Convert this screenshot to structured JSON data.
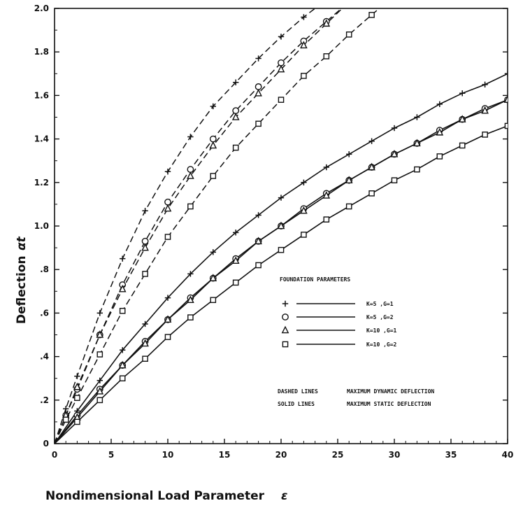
{
  "chart_data": {
    "type": "line",
    "xlabel": "Nondimensional Load Parameter",
    "xlabel_symbol": "ε",
    "ylabel": "Deflection",
    "ylabel_symbol": "αt",
    "xlim": [
      0,
      40
    ],
    "ylim": [
      0,
      2.0
    ],
    "x_ticks": [
      0,
      5,
      10,
      15,
      20,
      25,
      30,
      35,
      40
    ],
    "x_tick_labels": [
      "0",
      "5",
      "10",
      "15",
      "20",
      "25",
      "30",
      "35",
      "40"
    ],
    "y_ticks": [
      0,
      0.2,
      0.4,
      0.6,
      0.8,
      1.0,
      1.2,
      1.4,
      1.6,
      1.8,
      2.0
    ],
    "y_tick_labels": [
      "0",
      ".2",
      ".4",
      ".6",
      ".8",
      "1.0",
      "1.2",
      "1.4",
      "1.6",
      "1.8",
      "2.0"
    ],
    "grid": false,
    "legend_title": "FOUNDATION PARAMETERS",
    "legend_entries": [
      {
        "marker": "plus",
        "label": "K=5   ,G=1"
      },
      {
        "marker": "circle",
        "label": "K=5   ,G=2"
      },
      {
        "marker": "triangle",
        "label": "K=10  ,G=1"
      },
      {
        "marker": "square",
        "label": "K=10  ,G=2"
      }
    ],
    "notes": [
      {
        "left": "DASHED LINES",
        "right": "MAXIMUM DYNAMIC DEFLECTION"
      },
      {
        "left": "SOLID  LINES",
        "right": "MAXIMUM STATIC DEFLECTION"
      }
    ],
    "series": [
      {
        "marker": "plus",
        "style": "solid",
        "x": [
          0,
          2,
          4,
          6,
          8,
          10,
          12,
          14,
          16,
          18,
          20,
          22,
          24,
          26,
          28,
          30,
          32,
          34,
          36,
          38,
          40
        ],
        "y": [
          0,
          0.15,
          0.29,
          0.43,
          0.55,
          0.67,
          0.78,
          0.88,
          0.97,
          1.05,
          1.13,
          1.2,
          1.27,
          1.33,
          1.39,
          1.45,
          1.5,
          1.56,
          1.61,
          1.65,
          1.7
        ]
      },
      {
        "marker": "circle",
        "style": "solid",
        "x": [
          0,
          2,
          4,
          6,
          8,
          10,
          12,
          14,
          16,
          18,
          20,
          22,
          24,
          26,
          28,
          30,
          32,
          34,
          36,
          38,
          40
        ],
        "y": [
          0,
          0.13,
          0.25,
          0.36,
          0.47,
          0.57,
          0.67,
          0.76,
          0.85,
          0.93,
          1.0,
          1.08,
          1.15,
          1.21,
          1.27,
          1.33,
          1.38,
          1.44,
          1.49,
          1.54,
          1.58
        ]
      },
      {
        "marker": "triangle",
        "style": "solid",
        "x": [
          0,
          2,
          4,
          6,
          8,
          10,
          12,
          14,
          16,
          18,
          20,
          22,
          24,
          26,
          28,
          30,
          32,
          34,
          36,
          38,
          40
        ],
        "y": [
          0,
          0.12,
          0.24,
          0.36,
          0.46,
          0.57,
          0.66,
          0.76,
          0.84,
          0.93,
          1.0,
          1.07,
          1.14,
          1.21,
          1.27,
          1.33,
          1.38,
          1.43,
          1.49,
          1.53,
          1.58
        ]
      },
      {
        "marker": "square",
        "style": "solid",
        "x": [
          0,
          2,
          4,
          6,
          8,
          10,
          12,
          14,
          16,
          18,
          20,
          22,
          24,
          26,
          28,
          30,
          32,
          34,
          36,
          38,
          40
        ],
        "y": [
          0,
          0.1,
          0.2,
          0.3,
          0.39,
          0.49,
          0.58,
          0.66,
          0.74,
          0.82,
          0.89,
          0.96,
          1.03,
          1.09,
          1.15,
          1.21,
          1.26,
          1.32,
          1.37,
          1.42,
          1.46
        ]
      },
      {
        "marker": "plus",
        "style": "dashed",
        "x": [
          0,
          1,
          2,
          4,
          6,
          8,
          10,
          12,
          14,
          16,
          18,
          20,
          22,
          24,
          26
        ],
        "y": [
          0,
          0.16,
          0.31,
          0.6,
          0.85,
          1.07,
          1.25,
          1.41,
          1.55,
          1.66,
          1.77,
          1.87,
          1.96,
          2.04,
          2.12
        ]
      },
      {
        "marker": "circle",
        "style": "dashed",
        "x": [
          0,
          1,
          2,
          4,
          6,
          8,
          10,
          12,
          14,
          16,
          18,
          20,
          22,
          24,
          26
        ],
        "y": [
          0,
          0.13,
          0.25,
          0.5,
          0.73,
          0.93,
          1.11,
          1.26,
          1.4,
          1.53,
          1.64,
          1.75,
          1.85,
          1.94,
          2.03
        ]
      },
      {
        "marker": "triangle",
        "style": "dashed",
        "x": [
          0,
          1,
          2,
          4,
          6,
          8,
          10,
          12,
          14,
          16,
          18,
          20,
          22,
          24,
          26
        ],
        "y": [
          0,
          0.13,
          0.26,
          0.5,
          0.71,
          0.9,
          1.08,
          1.23,
          1.37,
          1.5,
          1.61,
          1.72,
          1.83,
          1.93,
          2.03
        ]
      },
      {
        "marker": "square",
        "style": "dashed",
        "x": [
          0,
          1,
          2,
          4,
          6,
          8,
          10,
          12,
          14,
          16,
          18,
          20,
          22,
          24,
          26,
          28,
          30
        ],
        "y": [
          0,
          0.11,
          0.21,
          0.41,
          0.61,
          0.78,
          0.95,
          1.09,
          1.23,
          1.36,
          1.47,
          1.58,
          1.69,
          1.78,
          1.88,
          1.97,
          2.06
        ]
      }
    ]
  }
}
